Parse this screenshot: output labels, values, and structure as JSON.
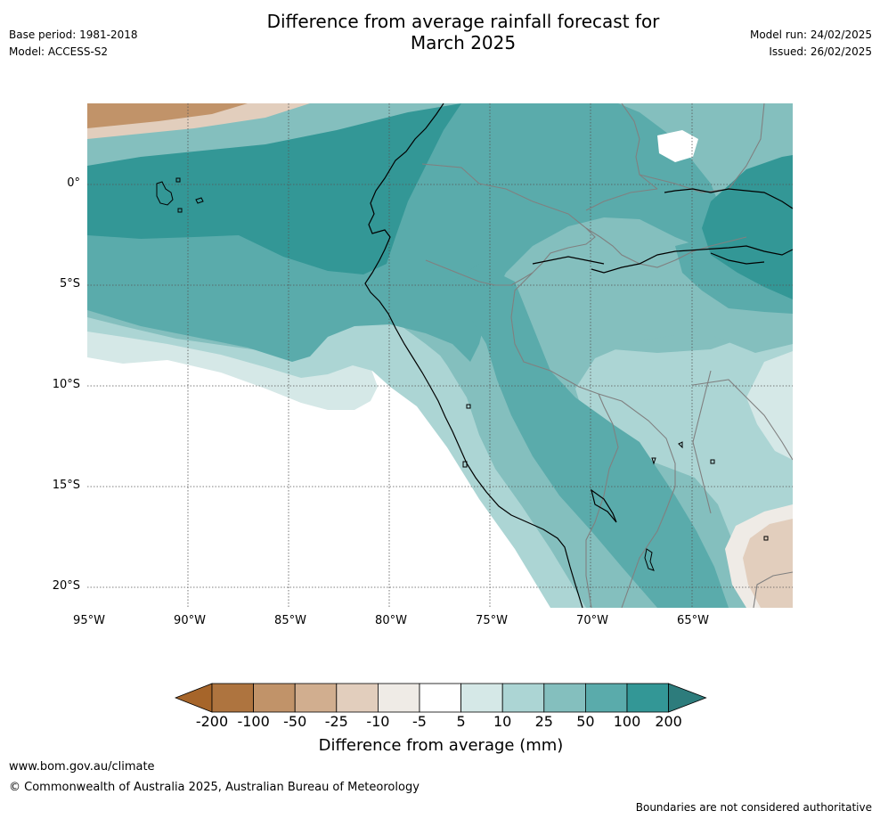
{
  "header": {
    "title_line1": "Difference from average rainfall forecast for",
    "title_line2": "March 2025",
    "base_period": "Base period: 1981-2018",
    "model": "Model: ACCESS-S2",
    "model_run": "Model run: 24/02/2025",
    "issued": "Issued: 26/02/2025"
  },
  "map": {
    "lat_ticks": [
      "0°",
      "5°S",
      "10°S",
      "15°S",
      "20°S"
    ],
    "lon_ticks": [
      "95°W",
      "90°W",
      "85°W",
      "80°W",
      "75°W",
      "70°W",
      "65°W"
    ]
  },
  "colorbar": {
    "title": "Difference from average (mm)",
    "labels": [
      "-200",
      "-100",
      "-50",
      "-25",
      "-10",
      "-5",
      "5",
      "10",
      "25",
      "50",
      "100",
      "200"
    ],
    "colors": [
      "#a6652a",
      "#ae743f",
      "#c19369",
      "#d1ae8f",
      "#e2cebd",
      "#efebe6",
      "#ffffff",
      "#d5e8e7",
      "#acd5d4",
      "#84bfbe",
      "#5aabab",
      "#339796",
      "#2d7c7c"
    ]
  },
  "footer": {
    "url": "www.bom.gov.au/climate",
    "copyright": "© Commonwealth of Australia 2025, Australian Bureau of Meteorology",
    "disclaimer": "Boundaries are not considered authoritative"
  }
}
